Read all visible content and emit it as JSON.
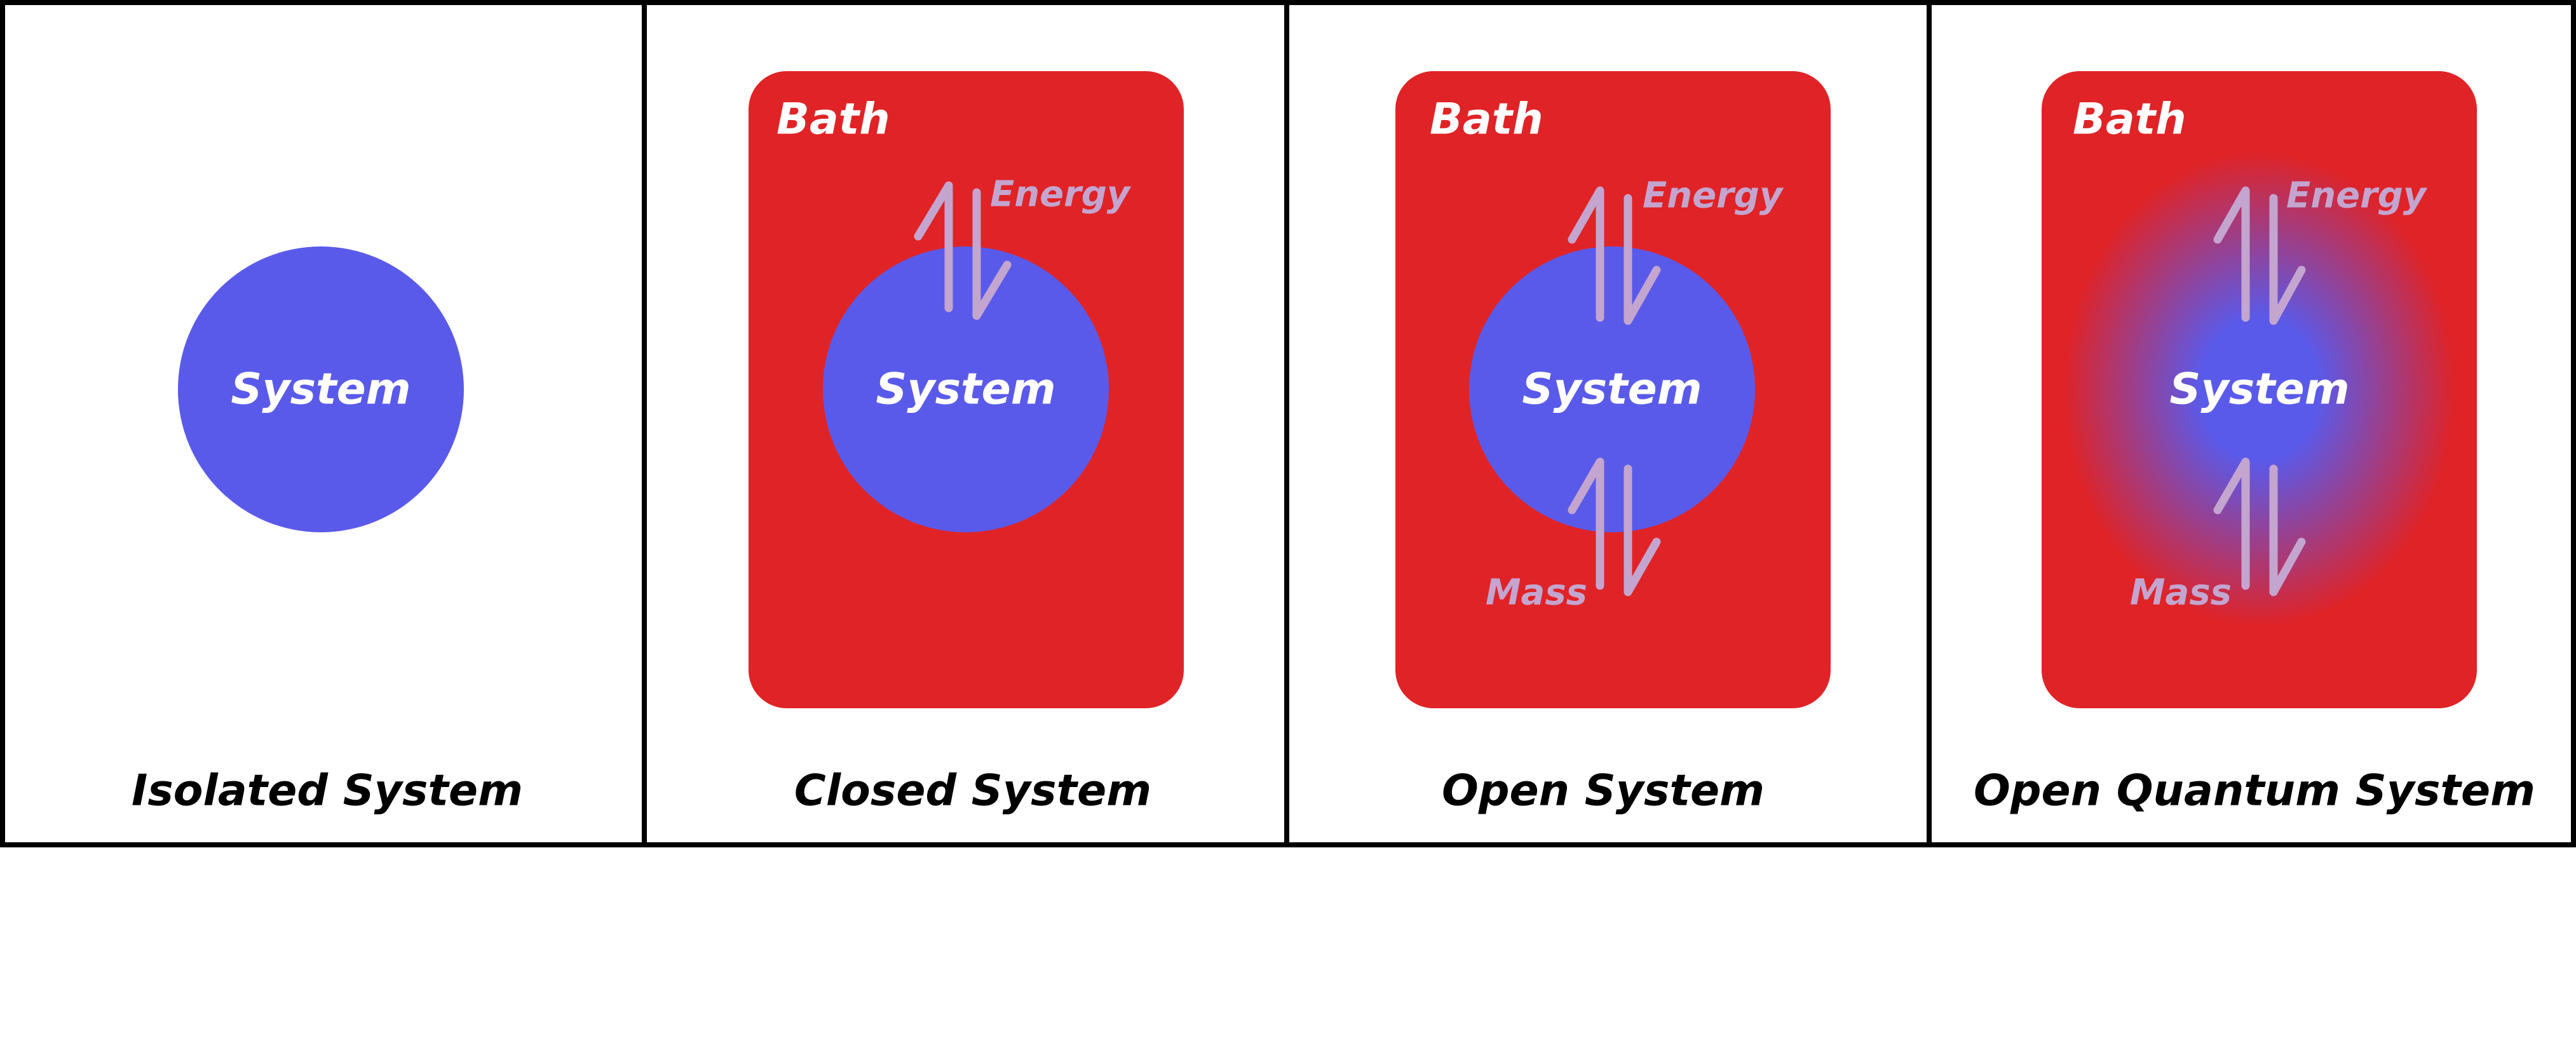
{
  "colors": {
    "system": "#5a5aea",
    "bath": "#e02326",
    "exchange": "#c3a5cf",
    "frame": "#000000",
    "label_light": "#ffffff"
  },
  "icons": {
    "exchange": "double-harpoon-arrows-icon"
  },
  "panels": [
    {
      "title": "Isolated System",
      "system_label": "System"
    },
    {
      "title": "Closed System",
      "bath_label": "Bath",
      "system_label": "System",
      "exchanges": [
        "Energy"
      ]
    },
    {
      "title": "Open System",
      "bath_label": "Bath",
      "system_label": "System",
      "exchanges": [
        "Energy",
        "Mass"
      ]
    },
    {
      "title": "Open Quantum System",
      "bath_label": "Bath",
      "system_label": "System",
      "exchanges": [
        "Energy",
        "Mass"
      ]
    }
  ]
}
